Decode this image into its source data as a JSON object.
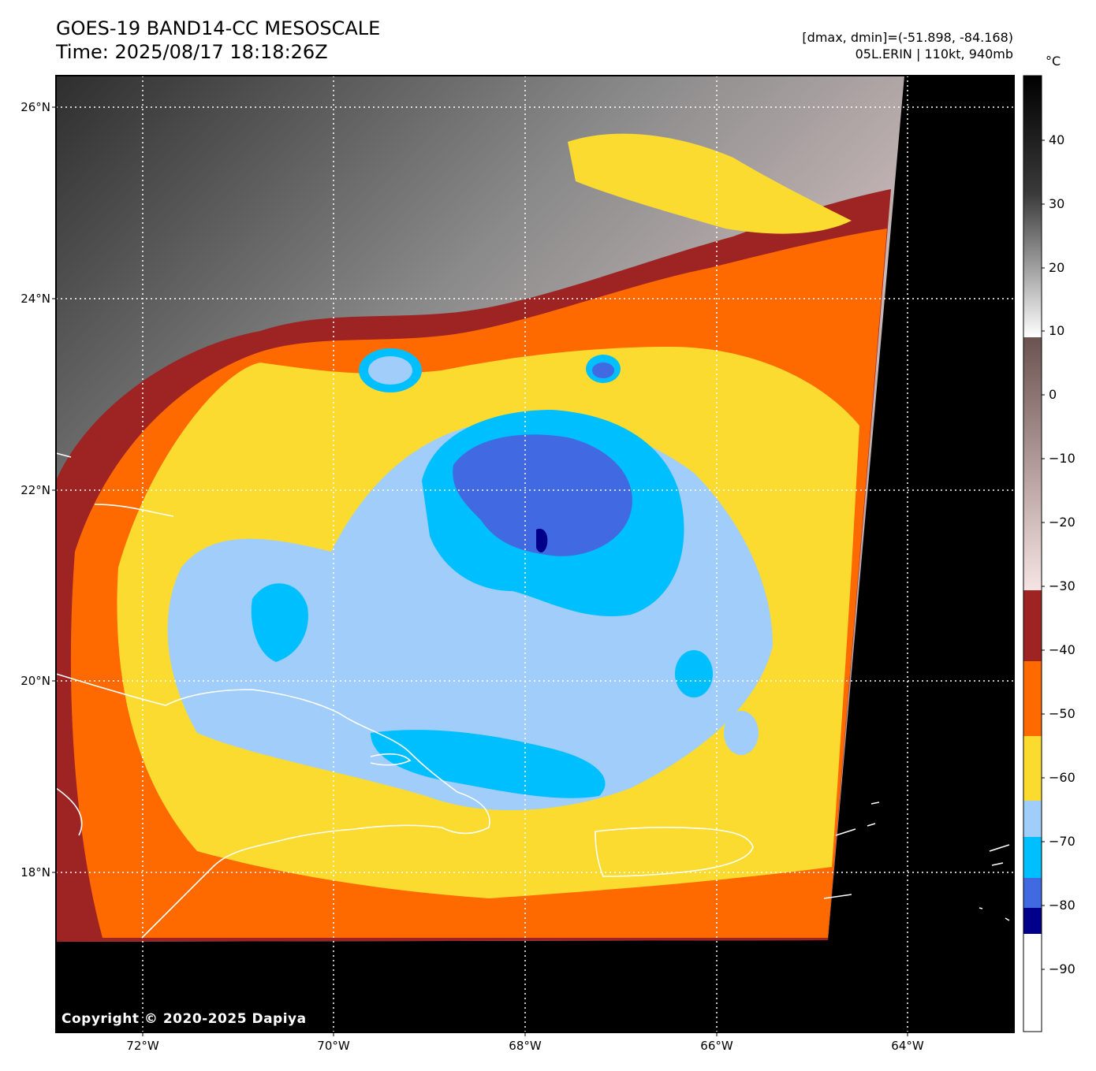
{
  "header": {
    "title": "GOES-19 BAND14-CC MESOSCALE",
    "time": "Time: 2025/08/17 18:18:26Z",
    "range": "[dmax, dmin]=(-51.898, -84.168)",
    "storm": "05L.ERIN | 110kt, 940mb"
  },
  "map": {
    "lat_labels": [
      "26°N",
      "24°N",
      "22°N",
      "20°N",
      "18°N"
    ],
    "lon_labels": [
      "72°W",
      "70°W",
      "68°W",
      "66°W",
      "64°W"
    ],
    "copyright": "Copyright © 2020-2025 Dapiya"
  },
  "colorbar": {
    "unit": "°C",
    "labels": [
      "40",
      "30",
      "20",
      "10",
      "0",
      "−10",
      "−20",
      "−30",
      "−40",
      "−50",
      "−60",
      "−70",
      "−80",
      "−90"
    ],
    "colors": {
      "warm_top": "#000000",
      "warm_mid": "#808080",
      "warm_light": "#ffffff",
      "brown_top": "#6b5350",
      "brown_bottom": "#f5e2e2",
      "dark_red": "#9e2424",
      "orange": "#ff6a00",
      "yellow": "#fcdb30",
      "light_blue": "#a0cdfa",
      "cyan": "#00bfff",
      "royal_blue": "#4169e1",
      "navy": "#00008b",
      "white": "#ffffff"
    }
  }
}
